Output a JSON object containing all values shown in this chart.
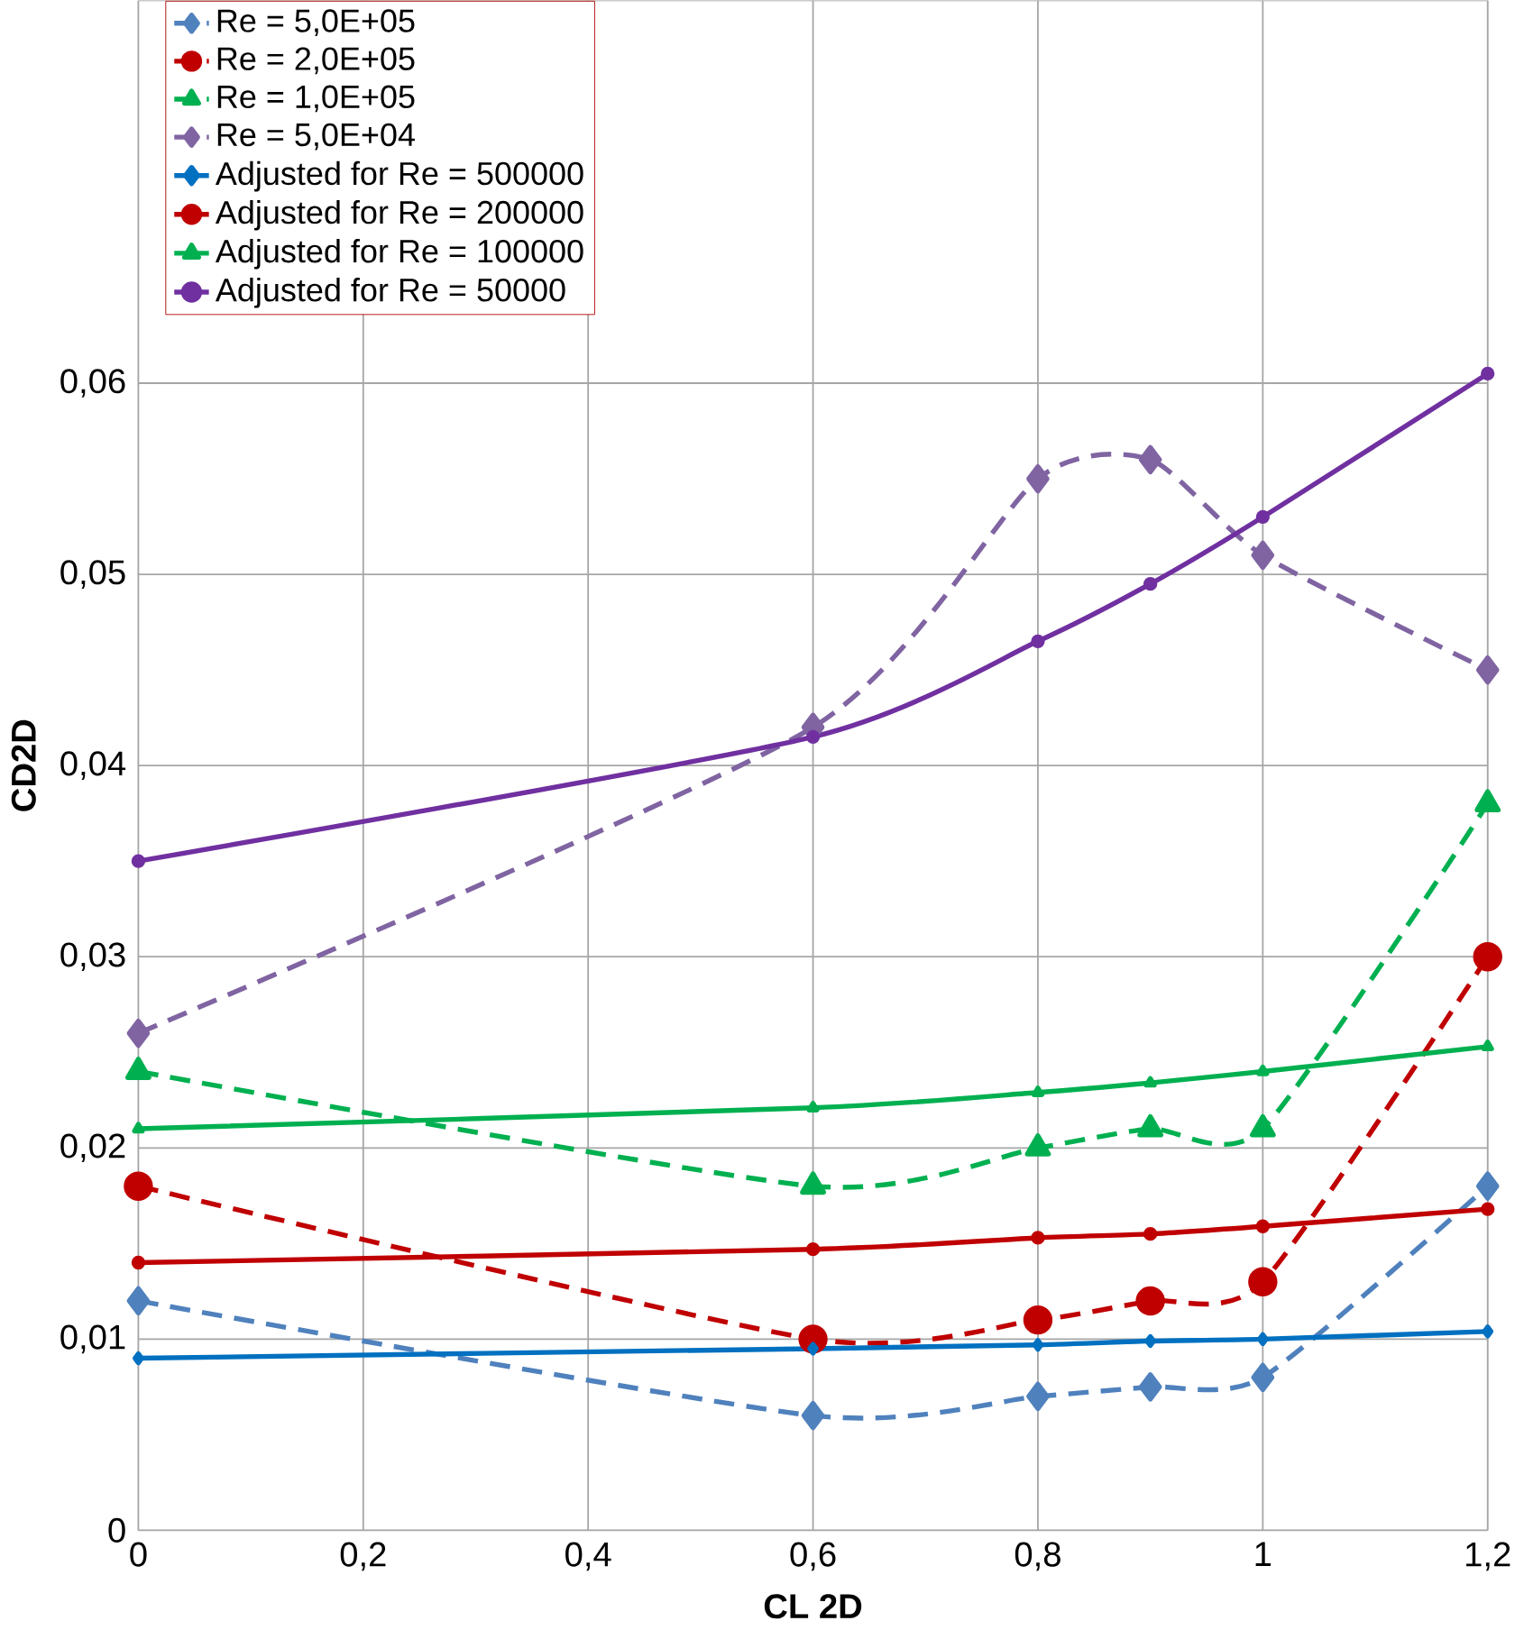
{
  "chart_data": {
    "type": "line",
    "xlabel": "CL 2D",
    "ylabel": "CD2D",
    "x": [
      0,
      0.6,
      0.8,
      0.9,
      1,
      1.2
    ],
    "xlim": [
      0,
      1.2
    ],
    "ylim": [
      0,
      0.08
    ],
    "xticks": [
      0,
      {
        "value": 0.2,
        "label": "0,2"
      },
      {
        "value": 0.4,
        "label": "0,4"
      },
      {
        "value": 0.6,
        "label": "0,6"
      },
      {
        "value": 0.8,
        "label": "0,8"
      },
      1,
      {
        "value": 1.2,
        "label": "1,2"
      }
    ],
    "yticks": [
      0,
      {
        "value": 0.01,
        "label": "0,01"
      },
      {
        "value": 0.02,
        "label": "0,02"
      },
      {
        "value": 0.03,
        "label": "0,03"
      },
      {
        "value": 0.04,
        "label": "0,04"
      },
      {
        "value": 0.05,
        "label": "0,05"
      },
      {
        "value": 0.06,
        "label": "0,06"
      }
    ],
    "grid": true,
    "legend": "top left",
    "series": [
      {
        "name": "Re = 5,0E+05",
        "color": "#4f81bd",
        "marker": "diamond",
        "line_style": "dashed",
        "values": [
          0.012,
          0.006,
          0.007,
          0.0075,
          0.008,
          0.018
        ]
      },
      {
        "name": "Re = 2,0E+05",
        "color": "#c00000",
        "marker": "circle",
        "line_style": "dashed",
        "values": [
          0.018,
          0.01,
          0.011,
          0.012,
          0.013,
          0.03
        ]
      },
      {
        "name": "Re = 1,0E+05",
        "color": "#00b050",
        "marker": "triangle",
        "line_style": "dashed",
        "values": [
          0.024,
          0.018,
          0.02,
          0.021,
          0.021,
          0.038
        ]
      },
      {
        "name": "Re = 5,0E+04",
        "color": "#8064a2",
        "marker": "diamond",
        "line_style": "dashed",
        "values": [
          0.026,
          0.042,
          0.055,
          0.056,
          0.051,
          0.045
        ]
      },
      {
        "name": "Adjusted for Re = 500000",
        "color": "#0070c0",
        "marker": "diamond",
        "line_style": "solid",
        "values": [
          0.009,
          0.0095,
          0.0097,
          0.0099,
          0.01,
          0.0104
        ]
      },
      {
        "name": "Adjusted for Re = 200000",
        "color": "#c00000",
        "marker": "circle",
        "line_style": "solid",
        "values": [
          0.014,
          0.0147,
          0.0153,
          0.0155,
          0.0159,
          0.0168
        ]
      },
      {
        "name": "Adjusted for Re = 100000",
        "color": "#00b050",
        "marker": "triangle",
        "line_style": "solid",
        "values": [
          0.021,
          0.0221,
          0.0229,
          0.0234,
          0.024,
          0.0253
        ]
      },
      {
        "name": "Adjusted for Re = 50000",
        "color": "#7030a0",
        "marker": "circle",
        "line_style": "solid",
        "values": [
          0.035,
          0.0415,
          0.0465,
          0.0495,
          0.053,
          0.0605
        ]
      }
    ]
  }
}
